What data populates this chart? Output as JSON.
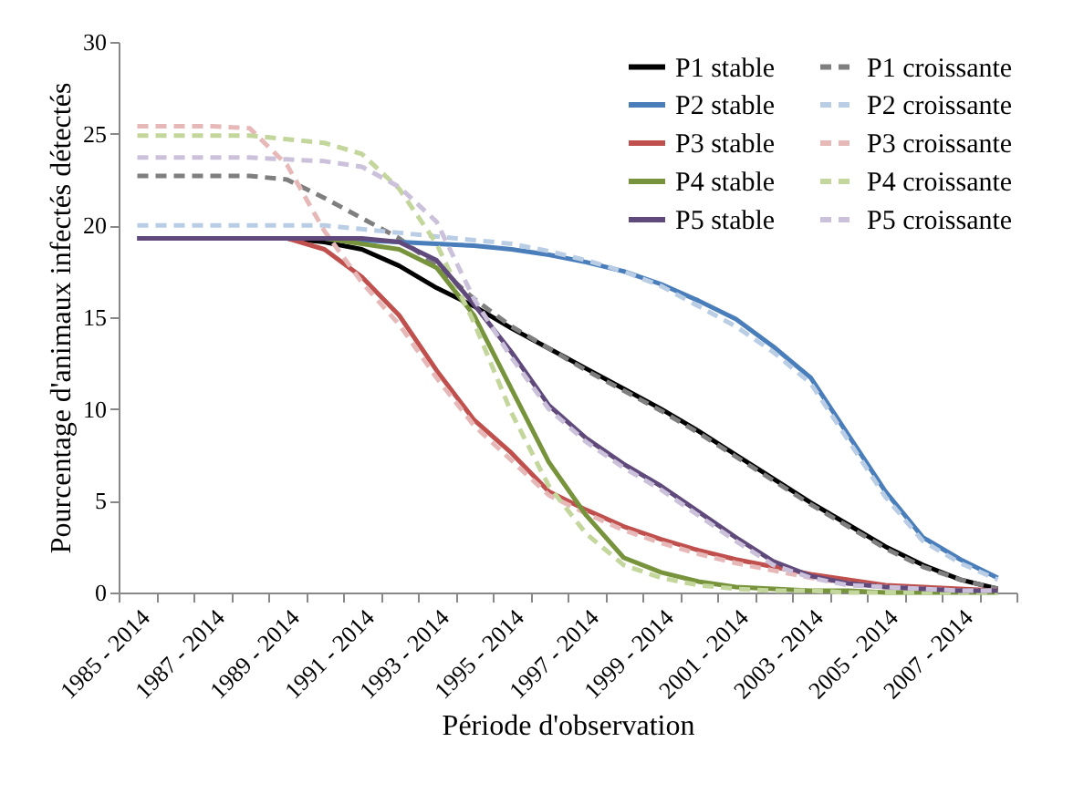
{
  "chart_data": {
    "type": "line",
    "xlabel": "Période d'observation",
    "ylabel": "Pourcentage d'animaux infectés détectés",
    "categories": [
      "1985 - 2014",
      null,
      "1987 - 2014",
      null,
      "1989 - 2014",
      null,
      "1991 - 2014",
      null,
      "1993 - 2014",
      null,
      "1995 - 2014",
      null,
      "1997 - 2014",
      null,
      "1999 - 2014",
      null,
      "2001 - 2014",
      null,
      "2003 - 2014",
      null,
      "2005 - 2014",
      null,
      "2007 - 2014",
      null
    ],
    "ylim": [
      0,
      30
    ],
    "yticks": [
      0,
      5,
      10,
      15,
      20,
      25,
      30
    ],
    "grid": false,
    "legend": "top right",
    "marker": "none",
    "series": [
      {
        "name": "P1 stable",
        "color": "#000000",
        "line_style": "solid",
        "values": [
          19.3,
          19.3,
          19.3,
          19.3,
          19.3,
          19.1,
          18.7,
          17.8,
          16.6,
          15.6,
          14.4,
          13.3,
          12.2,
          11.1,
          10.0,
          8.8,
          7.5,
          6.2,
          4.9,
          3.7,
          2.5,
          1.5,
          0.7,
          0.2
        ]
      },
      {
        "name": "P1 croissante",
        "color": "#7f7f7f",
        "line_style": "dashed",
        "values": [
          22.7,
          22.7,
          22.7,
          22.7,
          22.5,
          21.5,
          20.4,
          19.3,
          17.8,
          16.0,
          14.5,
          13.3,
          12.1,
          11.0,
          9.9,
          8.7,
          7.4,
          6.1,
          4.8,
          3.6,
          2.4,
          1.4,
          0.7,
          0.2
        ]
      },
      {
        "name": "P2 stable",
        "color": "#4a7ebb",
        "line_style": "solid",
        "values": [
          null,
          null,
          null,
          null,
          null,
          19.3,
          19.2,
          19.1,
          19.0,
          18.9,
          18.7,
          18.4,
          18.0,
          17.5,
          16.8,
          15.9,
          14.9,
          13.4,
          11.7,
          8.6,
          5.5,
          3.0,
          1.8,
          0.8
        ]
      },
      {
        "name": "P2 croissante",
        "color": "#b9cde5",
        "line_style": "dashed",
        "values": [
          20.0,
          20.0,
          20.0,
          20.0,
          20.0,
          20.0,
          19.8,
          19.6,
          19.4,
          19.2,
          19.0,
          18.6,
          18.1,
          17.5,
          16.7,
          15.6,
          14.5,
          13.1,
          11.4,
          8.3,
          5.2,
          2.8,
          1.6,
          0.7
        ]
      },
      {
        "name": "P3 stable",
        "color": "#c0504d",
        "line_style": "solid",
        "values": [
          null,
          null,
          null,
          null,
          19.3,
          18.7,
          17.2,
          15.1,
          12.1,
          9.4,
          7.6,
          5.5,
          4.5,
          3.6,
          2.9,
          2.3,
          1.8,
          1.4,
          1.0,
          0.7,
          0.4,
          0.3,
          0.2,
          0.1
        ]
      },
      {
        "name": "P3 croissante",
        "color": "#e6b9b8",
        "line_style": "dashed",
        "values": [
          25.4,
          25.4,
          25.4,
          25.3,
          23.3,
          19.7,
          16.9,
          14.6,
          11.7,
          9.1,
          7.2,
          5.3,
          4.3,
          3.4,
          2.7,
          2.1,
          1.6,
          1.2,
          0.8,
          0.5,
          0.3,
          0.2,
          0.1,
          0.1
        ]
      },
      {
        "name": "P4 stable",
        "color": "#77933c",
        "line_style": "solid",
        "values": [
          null,
          null,
          null,
          null,
          19.3,
          19.3,
          19.0,
          18.7,
          17.7,
          15.1,
          11.1,
          7.1,
          4.2,
          1.9,
          1.1,
          0.6,
          0.3,
          0.2,
          0.1,
          0.1,
          0.0,
          0.0,
          0.0,
          0.0
        ]
      },
      {
        "name": "P4 croissante",
        "color": "#c3d69b",
        "line_style": "dashed",
        "values": [
          24.9,
          24.9,
          24.9,
          24.9,
          24.7,
          24.5,
          23.9,
          22.0,
          19.0,
          14.7,
          9.8,
          5.8,
          3.2,
          1.5,
          0.8,
          0.4,
          0.2,
          0.1,
          0.1,
          0.0,
          0.0,
          0.0,
          0.0,
          0.0
        ]
      },
      {
        "name": "P5 stable",
        "color": "#604a7b",
        "line_style": "solid",
        "values": [
          19.3,
          19.3,
          19.3,
          19.3,
          19.3,
          19.3,
          19.3,
          19.1,
          18.1,
          15.7,
          13.1,
          10.2,
          8.4,
          7.0,
          5.8,
          4.4,
          3.0,
          1.7,
          0.9,
          0.5,
          0.3,
          0.2,
          0.1,
          0.1
        ]
      },
      {
        "name": "P5 croissante",
        "color": "#ccc1da",
        "line_style": "dashed",
        "values": [
          23.7,
          23.7,
          23.7,
          23.7,
          23.6,
          23.5,
          23.2,
          22.1,
          20.2,
          16.0,
          12.8,
          10.0,
          8.2,
          6.8,
          5.6,
          4.2,
          2.8,
          1.5,
          0.8,
          0.4,
          0.3,
          0.2,
          0.1,
          0.1
        ]
      }
    ]
  }
}
